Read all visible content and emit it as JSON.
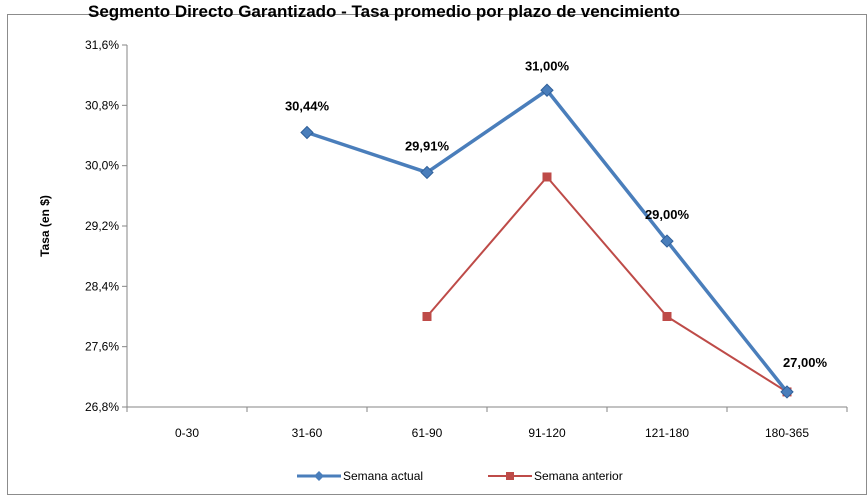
{
  "chart_data": {
    "type": "line",
    "title": "Segmento Directo Garantizado - Tasa promedio por plazo de vencimiento",
    "xlabel": "",
    "ylabel": "Tasa (en $)",
    "categories": [
      "0-30",
      "31-60",
      "61-90",
      "91-120",
      "121-180",
      "180-365"
    ],
    "ylim": [
      26.8,
      31.6
    ],
    "yticks": [
      "26,8%",
      "27,6%",
      "28,4%",
      "29,2%",
      "30,0%",
      "30,8%",
      "31,6%"
    ],
    "ytick_values": [
      26.8,
      27.6,
      28.4,
      29.2,
      30.0,
      30.8,
      31.6
    ],
    "grid": false,
    "legend_position": "bottom",
    "series": [
      {
        "name": "Semana actual",
        "color": "#4a7ebb",
        "marker": "diamond",
        "values": [
          null,
          30.44,
          29.91,
          31.0,
          29.0,
          27.0
        ],
        "labels": [
          null,
          "30,44%",
          "29,91%",
          "31,00%",
          "29,00%",
          "27,00%"
        ]
      },
      {
        "name": "Semana anterior",
        "color": "#be4b48",
        "marker": "square",
        "values": [
          null,
          null,
          28.0,
          29.85,
          28.0,
          27.0
        ],
        "labels": [
          null,
          null,
          null,
          null,
          null,
          null
        ]
      }
    ]
  }
}
